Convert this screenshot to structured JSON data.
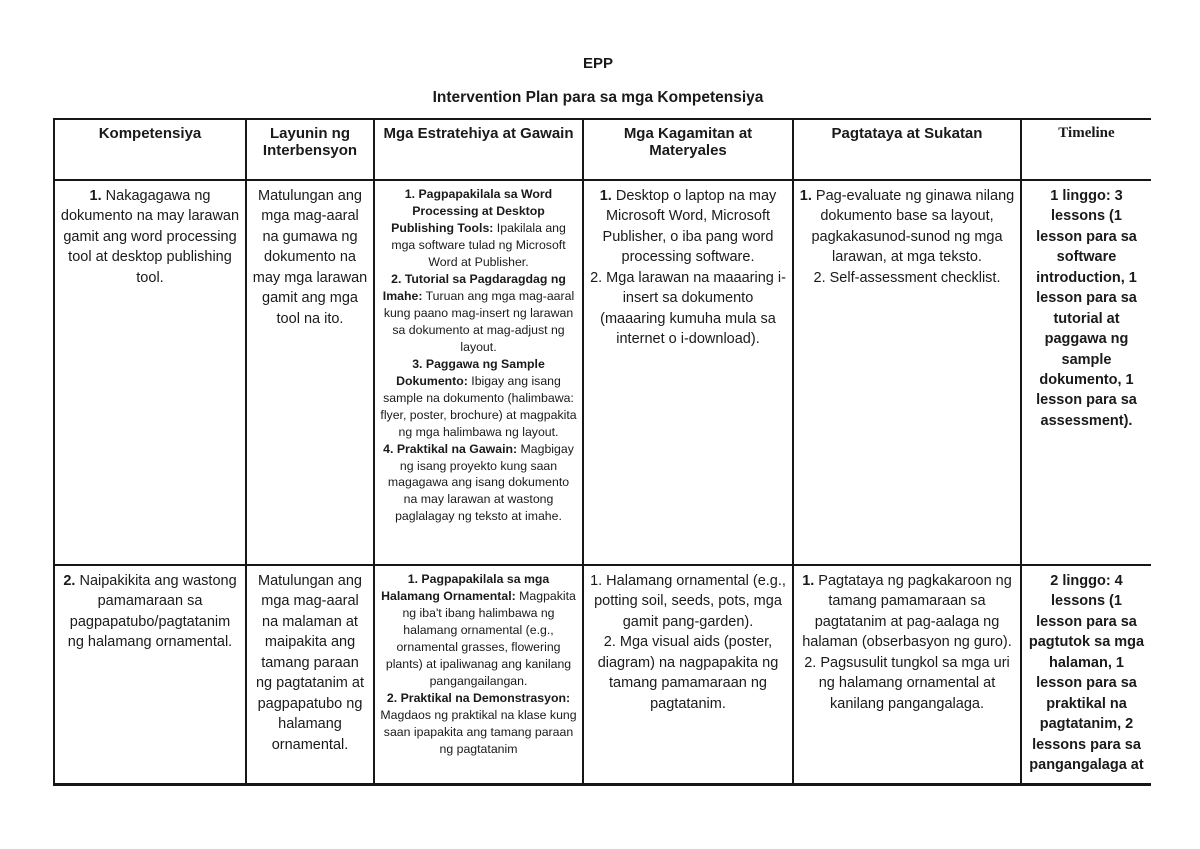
{
  "page": {
    "title": "EPP",
    "subtitle": "Intervention Plan para sa mga Kompetensiya"
  },
  "table": {
    "headers": [
      "Kompetensiya",
      "Layunin ng Interbensyon",
      "Mga Estratehiya at Gawain",
      "Mga Kagamitan at Materyales",
      "Pagtataya at Sukatan",
      "Timeline"
    ],
    "rows": [
      {
        "cells": [
          {
            "items": [
              {
                "segments": [
                  {
                    "t": "1.",
                    "b": true
                  },
                  {
                    "t": " Nakagagawa ng dokumento na may larawan gamit ang word processing tool at desktop publishing tool.",
                    "b": false
                  }
                ]
              }
            ]
          },
          {
            "items": [
              {
                "segments": [
                  {
                    "t": "Matulungan ang mga mag-aaral na gumawa ng dokumento na may mga larawan gamit ang mga tool na ito.",
                    "b": false
                  }
                ]
              }
            ]
          },
          {
            "items": [
              {
                "segments": [
                  {
                    "t": "1. Pagpapakilala sa Word Processing at Desktop Publishing Tools:",
                    "b": true
                  },
                  {
                    "t": " Ipakilala ang mga software tulad ng Microsoft Word at Publisher.",
                    "b": false
                  }
                ]
              },
              {
                "segments": [
                  {
                    "t": "2. Tutorial sa Pagdaragdag ng Imahe:",
                    "b": true
                  },
                  {
                    "t": " Turuan ang mga mag-aaral kung paano mag-insert ng larawan sa dokumento at mag-adjust ng layout.",
                    "b": false
                  }
                ]
              },
              {
                "segments": [
                  {
                    "t": "3. Paggawa ng Sample Dokumento:",
                    "b": true
                  },
                  {
                    "t": " Ibigay ang isang sample na dokumento (halimbawa: flyer, poster, brochure) at magpakita ng mga halimbawa ng layout.",
                    "b": false
                  }
                ]
              },
              {
                "segments": [
                  {
                    "t": "4. Praktikal na Gawain:",
                    "b": true
                  },
                  {
                    "t": " Magbigay ng isang proyekto kung saan magagawa ang isang dokumento na may larawan at wastong paglalagay ng teksto at imahe.",
                    "b": false
                  }
                ]
              }
            ]
          },
          {
            "items": [
              {
                "segments": [
                  {
                    "t": "1.",
                    "b": true
                  },
                  {
                    "t": " Desktop o laptop na may Microsoft Word, Microsoft Publisher, o iba pang word processing software.",
                    "b": false
                  }
                ]
              },
              {
                "segments": [
                  {
                    "t": "2. Mga larawan na maaaring i-insert sa dokumento (maaaring kumuha mula sa internet o i-download).",
                    "b": false
                  }
                ]
              }
            ]
          },
          {
            "items": [
              {
                "segments": [
                  {
                    "t": "1.",
                    "b": true
                  },
                  {
                    "t": " Pag-evaluate ng ginawa nilang dokumento base sa layout, pagkakasunod-sunod ng mga larawan, at mga teksto.",
                    "b": false
                  }
                ]
              },
              {
                "segments": [
                  {
                    "t": "2. Self-assessment checklist.",
                    "b": false
                  }
                ]
              }
            ]
          },
          {
            "items": [
              {
                "segments": [
                  {
                    "t": "1 linggo: 3 lessons (1 lesson para sa software introduction, 1 lesson para sa tutorial at paggawa ng sample dokumento, 1 lesson para sa assessment).",
                    "b": true
                  }
                ]
              }
            ]
          }
        ]
      },
      {
        "cells": [
          {
            "items": [
              {
                "segments": [
                  {
                    "t": "2.",
                    "b": true
                  },
                  {
                    "t": " Naipakikita ang wastong pamamaraan sa pagpapatubo/pagtatanim ng halamang ornamental.",
                    "b": false
                  }
                ]
              }
            ]
          },
          {
            "items": [
              {
                "segments": [
                  {
                    "t": "Matulungan ang mga mag-aaral na malaman at maipakita ang tamang paraan ng pagtatanim at pagpapatubo ng halamang ornamental.",
                    "b": false
                  }
                ]
              }
            ]
          },
          {
            "items": [
              {
                "segments": [
                  {
                    "t": "1. Pagpapakilala sa mga Halamang Ornamental:",
                    "b": true
                  },
                  {
                    "t": " Magpakita ng iba't ibang halimbawa ng halamang ornamental (e.g., ornamental grasses, flowering plants) at ipaliwanag ang kanilang pangangailangan.",
                    "b": false
                  }
                ]
              },
              {
                "segments": [
                  {
                    "t": "2. Praktikal na Demonstrasyon:",
                    "b": true
                  },
                  {
                    "t": " Magdaos ng praktikal na klase kung saan ipapakita ang tamang paraan ng pagtatanim",
                    "b": false
                  }
                ]
              }
            ]
          },
          {
            "items": [
              {
                "segments": [
                  {
                    "t": "1. Halamang ornamental (e.g., potting soil, seeds, pots, mga gamit pang-garden).",
                    "b": false
                  }
                ]
              },
              {
                "segments": [
                  {
                    "t": "2. Mga visual aids (poster, diagram) na nagpapakita ng tamang pamamaraan ng pagtatanim.",
                    "b": false
                  }
                ]
              }
            ]
          },
          {
            "items": [
              {
                "segments": [
                  {
                    "t": "1.",
                    "b": true
                  },
                  {
                    "t": " Pagtataya ng pagkakaroon ng tamang pamamaraan sa pagtatanim at pag-aalaga ng halaman (obserbasyon ng guro).",
                    "b": false
                  }
                ]
              },
              {
                "segments": [
                  {
                    "t": "2. Pagsusulit tungkol sa mga uri ng halamang ornamental at kanilang pangangalaga.",
                    "b": false
                  }
                ]
              }
            ]
          },
          {
            "items": [
              {
                "segments": [
                  {
                    "t": "2 linggo: 4 lessons (1 lesson para sa pagtutok sa mga halaman, 1 lesson para sa praktikal na pagtatanim, 2 lessons para sa pangangalaga at",
                    "b": true
                  }
                ]
              }
            ]
          }
        ]
      }
    ]
  }
}
